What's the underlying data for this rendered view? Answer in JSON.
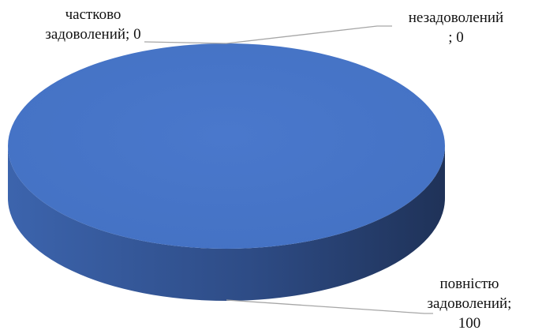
{
  "chart_data": {
    "type": "pie",
    "style": "3d",
    "title": "",
    "categories": [
      "повністю задоволений",
      "частково задоволений",
      "незадоволений"
    ],
    "values": [
      100,
      0,
      0
    ],
    "colors": {
      "slice_top": "#4472C4",
      "slice_side_light": "#3c64ad",
      "slice_side_dark": "#1f3258",
      "leader_line": "#a6a6a6"
    },
    "data_labels": [
      {
        "lines": [
          "частково",
          "задоволений; 0"
        ]
      },
      {
        "lines": [
          "незадоволений",
          "; 0"
        ]
      },
      {
        "lines": [
          "повністю",
          "задоволений;",
          "100"
        ]
      }
    ],
    "legend": "none"
  }
}
